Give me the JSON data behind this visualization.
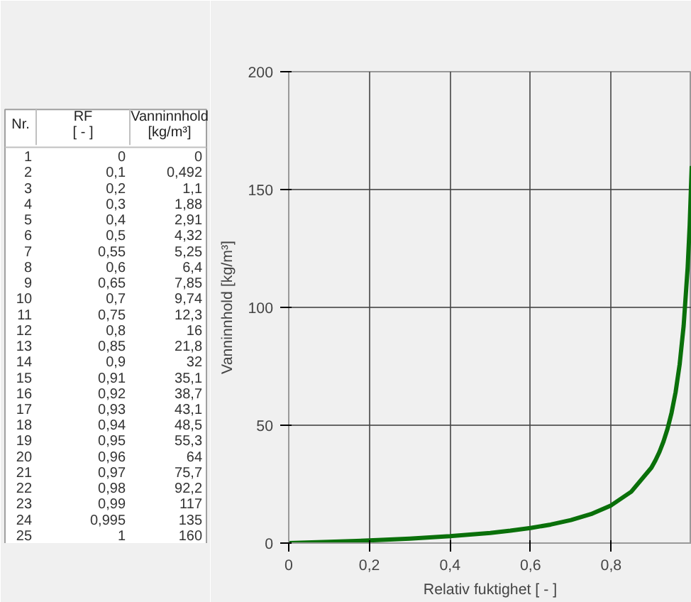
{
  "chart_data": [
    {
      "type": "other",
      "annotations": [
        "Nr.",
        "RF",
        "[ - ]",
        "Vanninnhold",
        "[kg/m³]",
        "1",
        "0",
        "0",
        "2",
        "0,1",
        "0,492",
        "3",
        "0,2",
        "1,1",
        "4",
        "0,3",
        "1,88",
        "5",
        "0,4",
        "2,91",
        "6",
        "0,5",
        "4,32",
        "7",
        "0,55",
        "5,25",
        "8",
        "0,6",
        "6,4",
        "9",
        "0,65",
        "7,85",
        "10",
        "0,7",
        "9,74",
        "11",
        "0,75",
        "12,3",
        "12",
        "0,8",
        "16",
        "13",
        "0,85",
        "21,8",
        "14",
        "0,9",
        "32",
        "15",
        "0,91",
        "35,1",
        "16",
        "0,92",
        "38,7",
        "17",
        "0,93",
        "43,1",
        "18",
        "0,94",
        "48,5",
        "19",
        "0,95",
        "55,3",
        "20",
        "0,96",
        "64",
        "21",
        "0,97",
        "75,7",
        "22",
        "0,98",
        "92,2",
        "23",
        "0,99",
        "117",
        "24",
        "0,995",
        "135",
        "25",
        "1",
        "160"
      ]
    },
    {
      "type": "line",
      "xlabel": "Relativ fuktighet [ - ]",
      "ylabel": "Vanninnhold [kg/m³]",
      "x": [
        0,
        0.1,
        0.2,
        0.3,
        0.4,
        0.5,
        0.55,
        0.6,
        0.65,
        0.7,
        0.75,
        0.8,
        0.85,
        0.9,
        0.91,
        0.92,
        0.93,
        0.94,
        0.95,
        0.96,
        0.97,
        0.98,
        0.99,
        0.995,
        1
      ],
      "series": [
        {
          "color": "#0a700a",
          "values": [
            0,
            0.492,
            1.1,
            1.88,
            2.91,
            4.32,
            5.25,
            6.4,
            7.85,
            9.74,
            12.3,
            16,
            21.8,
            32,
            35.1,
            38.7,
            43.1,
            48.5,
            55.3,
            64,
            75.7,
            92.2,
            117,
            135,
            160
          ]
        }
      ],
      "xlim": [
        0,
        1
      ],
      "xticks": [
        0,
        {
          "value": 0.2,
          "label": "0,2"
        },
        {
          "value": 0.4,
          "label": "0,4"
        },
        {
          "value": 0.6,
          "label": "0,6"
        },
        {
          "value": 0.8,
          "label": "0,8"
        }
      ],
      "ylim": [
        0,
        200
      ],
      "yticks": [
        0,
        50,
        100,
        150,
        200
      ],
      "grid": true,
      "marker": "none",
      "line_style": "solid"
    }
  ]
}
